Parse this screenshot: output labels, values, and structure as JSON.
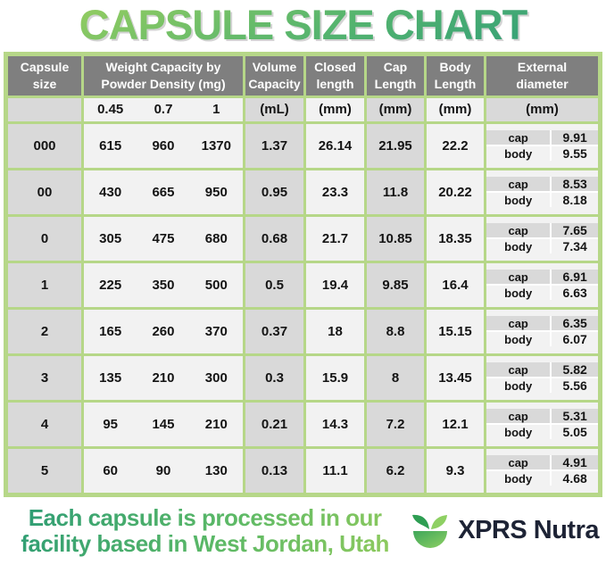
{
  "title": "CAPSULE SIZE CHART",
  "header": {
    "capsule_size": "Capsule size",
    "weight_line1": "Weight Capacity by",
    "weight_line2": "Powder Density (mg)",
    "volume_line1": "Volume",
    "volume_line2": "Capacity",
    "closed_line1": "Closed",
    "closed_line2": "length",
    "cap_line1": "Cap",
    "cap_line2": "Length",
    "body_line1": "Body",
    "body_line2": "Length",
    "external_line1": "External",
    "external_line2": "diameter"
  },
  "subheader": {
    "densities": [
      "0.45",
      "0.7",
      "1"
    ],
    "volume_unit": "(mL)",
    "closed_unit": "(mm)",
    "cap_unit": "(mm)",
    "body_unit": "(mm)",
    "external_unit": "(mm)"
  },
  "labels": {
    "cap": "cap",
    "body": "body"
  },
  "chart_data": {
    "type": "table",
    "title": "CAPSULE SIZE CHART",
    "columns": [
      "Capsule size",
      "Weight Capacity by Powder Density 0.45 (mg)",
      "Weight Capacity by Powder Density 0.7 (mg)",
      "Weight Capacity by Powder Density 1 (mg)",
      "Volume Capacity (mL)",
      "Closed length (mm)",
      "Cap Length (mm)",
      "Body Length (mm)",
      "External diameter cap (mm)",
      "External diameter body (mm)"
    ],
    "rows": [
      {
        "size": "000",
        "weights": [
          "615",
          "960",
          "1370"
        ],
        "volume": "1.37",
        "closed_length": "26.14",
        "cap_length": "21.95",
        "body_length": "22.2",
        "cap_diameter": "9.91",
        "body_diameter": "9.55"
      },
      {
        "size": "00",
        "weights": [
          "430",
          "665",
          "950"
        ],
        "volume": "0.95",
        "closed_length": "23.3",
        "cap_length": "11.8",
        "body_length": "20.22",
        "cap_diameter": "8.53",
        "body_diameter": "8.18"
      },
      {
        "size": "0",
        "weights": [
          "305",
          "475",
          "680"
        ],
        "volume": "0.68",
        "closed_length": "21.7",
        "cap_length": "10.85",
        "body_length": "18.35",
        "cap_diameter": "7.65",
        "body_diameter": "7.34"
      },
      {
        "size": "1",
        "weights": [
          "225",
          "350",
          "500"
        ],
        "volume": "0.5",
        "closed_length": "19.4",
        "cap_length": "9.85",
        "body_length": "16.4",
        "cap_diameter": "6.91",
        "body_diameter": "6.63"
      },
      {
        "size": "2",
        "weights": [
          "165",
          "260",
          "370"
        ],
        "volume": "0.37",
        "closed_length": "18",
        "cap_length": "8.8",
        "body_length": "15.15",
        "cap_diameter": "6.35",
        "body_diameter": "6.07"
      },
      {
        "size": "3",
        "weights": [
          "135",
          "210",
          "300"
        ],
        "volume": "0.3",
        "closed_length": "15.9",
        "cap_length": "8",
        "body_length": "13.45",
        "cap_diameter": "5.82",
        "body_diameter": "5.56"
      },
      {
        "size": "4",
        "weights": [
          "95",
          "145",
          "210"
        ],
        "volume": "0.21",
        "closed_length": "14.3",
        "cap_length": "7.2",
        "body_length": "12.1",
        "cap_diameter": "5.31",
        "body_diameter": "5.05"
      },
      {
        "size": "5",
        "weights": [
          "60",
          "90",
          "130"
        ],
        "volume": "0.13",
        "closed_length": "11.1",
        "cap_length": "6.2",
        "body_length": "9.3",
        "cap_diameter": "4.91",
        "body_diameter": "4.68"
      }
    ]
  },
  "footer": {
    "line1": "Each capsule is processed in our",
    "line2": "facility based in West Jordan, Utah",
    "brand": "XPRS Nutra"
  },
  "colors": {
    "table_border_green": "#b6d788",
    "header_gray": "#7f7f7f",
    "cell_gray": "#d9d9d9",
    "cell_light": "#f2f2f2",
    "title_green_light": "#97ce60",
    "title_green_dark": "#2f9d79",
    "brand_navy": "#1d2335"
  }
}
